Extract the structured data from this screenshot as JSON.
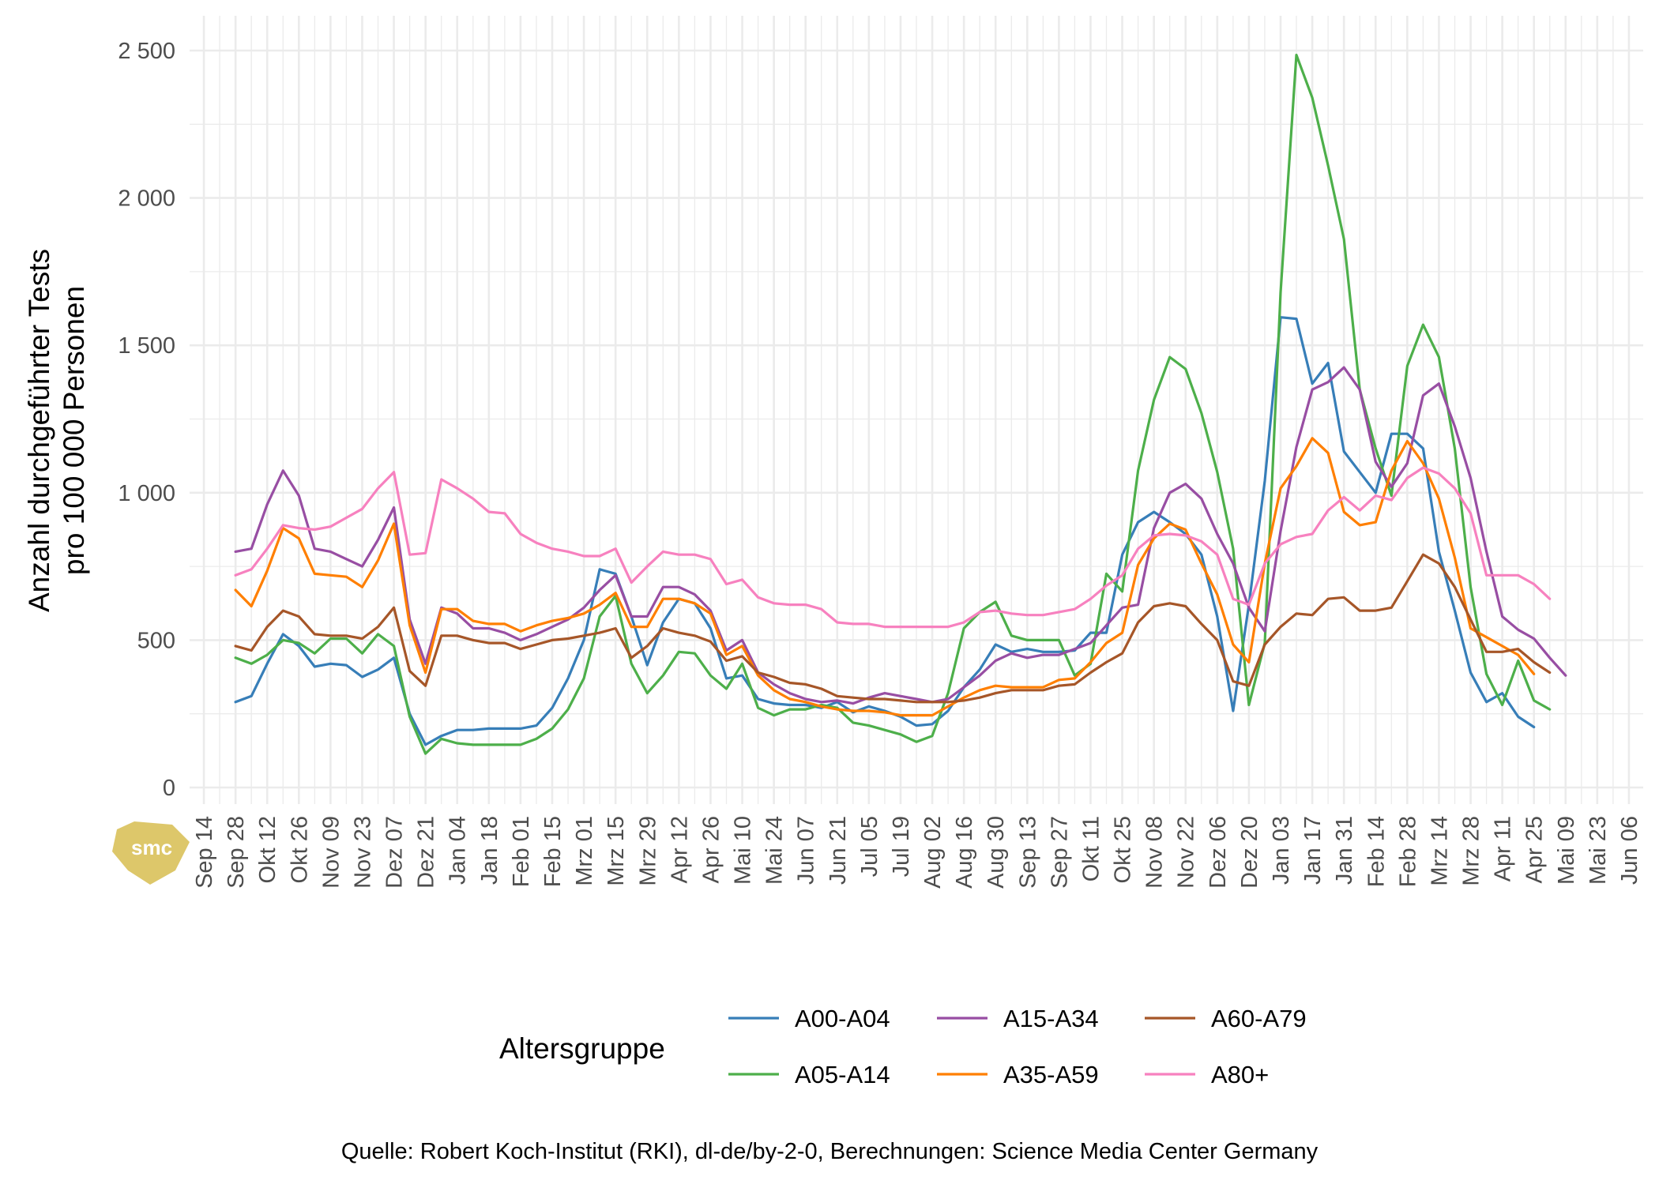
{
  "chart_data": {
    "type": "line",
    "ylabel_line1": "Anzahl durchgeführter Tests",
    "ylabel_line2": "pro 100 000 Personen",
    "xlabel": "",
    "ylim": [
      0,
      2500
    ],
    "yticks": [
      0,
      500,
      1000,
      1500,
      2000,
      2500
    ],
    "ytick_labels": [
      "0",
      "500",
      "1 000",
      "1 500",
      "2 000",
      "2 500"
    ],
    "x_domain": [
      -0.9,
      90.9
    ],
    "xticks": [
      "Sep 14",
      "Sep 28",
      "Okt 12",
      "Okt 26",
      "Nov 09",
      "Nov 23",
      "Dez 07",
      "Dez 21",
      "Jan 04",
      "Jan 18",
      "Feb 01",
      "Feb 15",
      "Mrz 01",
      "Mrz 15",
      "Mrz 29",
      "Apr 12",
      "Apr 26",
      "Mai 10",
      "Mai 24",
      "Jun 07",
      "Jun 21",
      "Jul 05",
      "Jul 19",
      "Aug 02",
      "Aug 16",
      "Aug 30",
      "Sep 13",
      "Sep 27",
      "Okt 11",
      "Okt 25",
      "Nov 08",
      "Nov 22",
      "Dez 06",
      "Dez 20",
      "Jan 03",
      "Jan 17",
      "Jan 31",
      "Feb 14",
      "Feb 28",
      "Mrz 14",
      "Mrz 28",
      "Apr 11",
      "Apr 25",
      "Mai 09",
      "Mai 23",
      "Jun 06"
    ],
    "x_start": 2,
    "grid": true,
    "legend_title": "Altersgruppe",
    "legend_position": "bottom",
    "series": [
      {
        "name": "A00-A04",
        "color": "#377EB8",
        "values": [
          290,
          310,
          420,
          520,
          480,
          410,
          420,
          415,
          375,
          400,
          440,
          250,
          145,
          175,
          195,
          195,
          200,
          200,
          200,
          210,
          270,
          370,
          500,
          740,
          725,
          580,
          415,
          560,
          640,
          625,
          540,
          370,
          380,
          300,
          285,
          280,
          280,
          270,
          290,
          255,
          275,
          260,
          240,
          210,
          215,
          260,
          340,
          400,
          485,
          460,
          470,
          460,
          460,
          465,
          525,
          525,
          790,
          900,
          935,
          900,
          860,
          790,
          580,
          260,
          620,
          1040,
          1595,
          1590,
          1370,
          1440,
          1140,
          1070,
          1000,
          1200,
          1200,
          1150,
          800,
          600,
          390,
          290,
          320,
          240,
          205
        ]
      },
      {
        "name": "A05-A14",
        "color": "#4DAF4A",
        "values": [
          440,
          420,
          450,
          500,
          490,
          455,
          505,
          505,
          455,
          520,
          480,
          240,
          115,
          165,
          150,
          145,
          145,
          145,
          145,
          165,
          200,
          265,
          370,
          580,
          650,
          420,
          320,
          380,
          460,
          455,
          380,
          335,
          420,
          270,
          245,
          265,
          265,
          280,
          270,
          220,
          210,
          195,
          180,
          155,
          175,
          320,
          540,
          595,
          630,
          515,
          500,
          500,
          500,
          380,
          420,
          725,
          665,
          1075,
          1315,
          1460,
          1420,
          1270,
          1070,
          810,
          280,
          490,
          1680,
          2485,
          2340,
          2110,
          1860,
          1350,
          1150,
          990,
          1430,
          1570,
          1460,
          1150,
          680,
          385,
          280,
          430,
          295,
          265
        ]
      },
      {
        "name": "A15-A34",
        "color": "#984EA3",
        "values": [
          800,
          810,
          960,
          1075,
          990,
          810,
          800,
          775,
          750,
          840,
          950,
          570,
          420,
          610,
          590,
          540,
          540,
          525,
          500,
          520,
          545,
          570,
          610,
          670,
          720,
          580,
          580,
          680,
          680,
          655,
          600,
          465,
          500,
          390,
          350,
          320,
          300,
          290,
          295,
          285,
          305,
          320,
          310,
          300,
          290,
          300,
          340,
          380,
          430,
          455,
          440,
          450,
          450,
          470,
          490,
          550,
          610,
          620,
          880,
          1000,
          1030,
          980,
          860,
          760,
          610,
          530,
          870,
          1155,
          1350,
          1375,
          1425,
          1350,
          1105,
          1020,
          1100,
          1330,
          1370,
          1225,
          1050,
          800,
          580,
          535,
          505,
          440,
          380
        ]
      },
      {
        "name": "A35-A59",
        "color": "#FF7F00",
        "values": [
          670,
          615,
          735,
          880,
          845,
          725,
          720,
          715,
          680,
          770,
          895,
          550,
          390,
          605,
          605,
          565,
          555,
          555,
          530,
          550,
          565,
          575,
          590,
          620,
          660,
          545,
          545,
          640,
          640,
          625,
          590,
          450,
          480,
          380,
          330,
          300,
          290,
          275,
          265,
          260,
          260,
          255,
          245,
          245,
          245,
          275,
          305,
          330,
          345,
          340,
          340,
          340,
          365,
          370,
          425,
          490,
          525,
          755,
          845,
          895,
          875,
          760,
          655,
          485,
          425,
          760,
          1015,
          1090,
          1185,
          1135,
          935,
          890,
          900,
          1075,
          1175,
          1100,
          980,
          780,
          540,
          510,
          480,
          450,
          385
        ]
      },
      {
        "name": "A60-A79",
        "color": "#A65628",
        "values": [
          480,
          465,
          545,
          600,
          580,
          520,
          515,
          515,
          505,
          545,
          610,
          395,
          345,
          515,
          515,
          500,
          490,
          490,
          470,
          485,
          500,
          505,
          515,
          525,
          540,
          440,
          480,
          540,
          525,
          515,
          495,
          430,
          445,
          390,
          375,
          355,
          350,
          335,
          310,
          305,
          300,
          300,
          295,
          290,
          290,
          290,
          295,
          305,
          320,
          330,
          330,
          330,
          345,
          350,
          390,
          425,
          455,
          560,
          615,
          625,
          615,
          555,
          500,
          360,
          345,
          485,
          545,
          590,
          585,
          640,
          645,
          600,
          600,
          610,
          700,
          790,
          760,
          680,
          570,
          460,
          460,
          470,
          425,
          390
        ]
      },
      {
        "name": "A80+",
        "color": "#F781BF",
        "values": [
          720,
          740,
          810,
          890,
          880,
          875,
          885,
          915,
          945,
          1015,
          1070,
          790,
          795,
          1045,
          1015,
          980,
          935,
          930,
          860,
          830,
          810,
          800,
          785,
          785,
          810,
          695,
          750,
          800,
          790,
          790,
          775,
          690,
          705,
          645,
          625,
          620,
          620,
          605,
          560,
          555,
          555,
          545,
          545,
          545,
          545,
          545,
          560,
          595,
          600,
          590,
          585,
          585,
          595,
          605,
          640,
          685,
          720,
          810,
          855,
          860,
          855,
          835,
          790,
          640,
          620,
          760,
          825,
          850,
          860,
          940,
          985,
          940,
          990,
          975,
          1050,
          1085,
          1065,
          1015,
          930,
          720,
          720,
          720,
          690,
          640
        ]
      }
    ]
  },
  "caption": "Quelle: Robert Koch-Institut (RKI), dl-de/by-2-0, Berechnungen: Science Media Center Germany",
  "logo_text": "smc"
}
